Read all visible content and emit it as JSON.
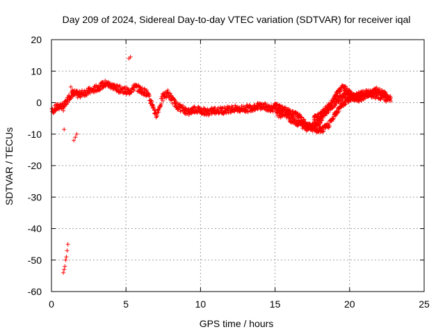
{
  "chart_data": {
    "type": "scatter",
    "title": "Day 209 of 2024, Sidereal Day-to-day VTEC variation (SDTVAR) for receiver iqal",
    "xlabel": "GPS time / hours",
    "ylabel": "SDTVAR / TECUs",
    "xlim": [
      0,
      25
    ],
    "ylim": [
      -60,
      20
    ],
    "xticks": [
      0,
      5,
      10,
      15,
      20,
      25
    ],
    "yticks": [
      -60,
      -50,
      -40,
      -30,
      -20,
      -10,
      0,
      10,
      20
    ],
    "grid": true,
    "marker": "plus",
    "color": "#ff0000",
    "series": [
      {
        "name": "SDTVAR",
        "trace_x": [
          0.0,
          0.2,
          0.4,
          0.6,
          0.8,
          1.0,
          1.2,
          1.5,
          1.8,
          2.1,
          2.4,
          2.8,
          3.2,
          3.6,
          4.0,
          4.4,
          4.8,
          5.2,
          5.6,
          6.0,
          6.4,
          6.8,
          7.0,
          7.2,
          7.5,
          7.8,
          8.1,
          8.4,
          8.8,
          9.2,
          9.6,
          10.0,
          10.5,
          11.0,
          11.5,
          12.0,
          12.5,
          13.0,
          13.5,
          14.0,
          14.5,
          15.0,
          15.3,
          15.6,
          16.0,
          16.4,
          16.8,
          17.2,
          17.6,
          18.0,
          18.4,
          18.8,
          19.2,
          19.6,
          20.0,
          20.4,
          20.8,
          21.2,
          21.6,
          22.0,
          22.4,
          22.8
        ],
        "trace_y": [
          -3,
          -2,
          -1.5,
          -1,
          -1.5,
          0,
          2,
          3,
          2.5,
          3,
          3.5,
          4,
          5,
          6,
          5.5,
          4.5,
          4,
          3.5,
          5,
          4,
          3,
          -1,
          -4,
          -2,
          2,
          3,
          1,
          -1,
          -2,
          -3,
          -2,
          -2.5,
          -3,
          -2.5,
          -2.5,
          -2,
          -2,
          -2,
          -1.5,
          -1,
          -1.5,
          -2,
          -4,
          -3,
          -5,
          -6,
          -7,
          -8,
          -7,
          -6,
          -3,
          -1,
          1,
          2,
          2,
          2,
          2.5,
          3,
          2.5,
          2,
          1.5,
          1
        ],
        "trace2_x": [
          15.0,
          15.5,
          16.0,
          16.5,
          17.0,
          17.4,
          17.8,
          18.2,
          18.6,
          19.0,
          19.4,
          19.8,
          20.2,
          20.6,
          21.0
        ],
        "trace2_y": [
          -1,
          -2,
          -3,
          -4,
          -6,
          -8,
          -9,
          -8.5,
          -7,
          -4,
          -1,
          0.5,
          1.5,
          2,
          2.5
        ],
        "upper_x": [
          17.6,
          18.0,
          18.4,
          18.8,
          19.2,
          19.5,
          19.8,
          20.2,
          20.6,
          21.0,
          21.4,
          21.8,
          22.2,
          22.6
        ],
        "upper_y": [
          -5,
          -4,
          -2,
          0,
          3,
          5,
          4,
          2,
          1,
          2,
          3,
          4,
          3,
          2
        ],
        "extra_x": [
          0.8,
          0.85,
          0.9,
          0.95,
          1.0,
          1.05,
          1.1,
          1.5,
          1.6,
          1.7,
          5.2,
          5.3,
          0.85,
          1.3,
          1.4
        ],
        "extra_y": [
          -54,
          -53,
          -52,
          -50,
          -49,
          -47,
          -45,
          -12,
          -11,
          -10,
          14,
          14.5,
          -8.5,
          5,
          4
        ]
      }
    ]
  }
}
